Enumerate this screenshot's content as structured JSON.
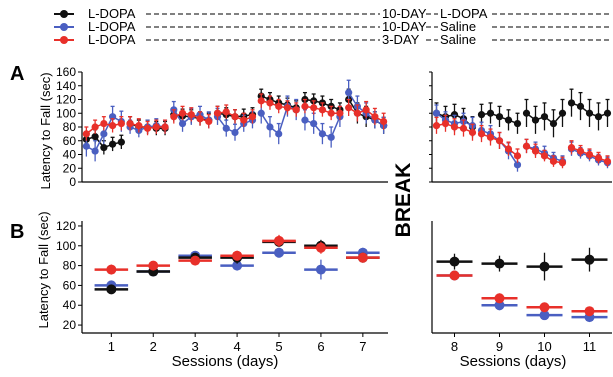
{
  "figure": {
    "panel_a_letter": "A",
    "panel_b_letter": "B",
    "break_label": "BREAK",
    "xlabel_left": "Sessions (days)",
    "xlabel_right": "Sessions (days)",
    "ylabel_a": "Latency to Fall (sec)",
    "ylabel_b": "Latency to Fall (sec)"
  },
  "legend": [
    {
      "color": "#111111",
      "left": "L-DOPA",
      "mid": "10-DAY",
      "right": "L-DOPA"
    },
    {
      "color": "#4a5fc1",
      "left": "L-DOPA",
      "mid": "10-DAY",
      "right": "Saline"
    },
    {
      "color": "#e8302a",
      "left": "L-DOPA",
      "mid": "3-DAY",
      "right": "Saline"
    }
  ],
  "colors": {
    "black": "#111111",
    "blue": "#4a5fc1",
    "red": "#e8302a"
  },
  "chart_data": [
    {
      "type": "line",
      "panel": "A",
      "part": "sessions 1-7",
      "ylabel": "Latency to Fall (sec)",
      "yticks": [
        0,
        20,
        40,
        60,
        80,
        100,
        120,
        140,
        160
      ],
      "ylim": [
        0,
        160
      ],
      "xlim": [
        0.5,
        7.5
      ],
      "points_per_session": 5,
      "series": [
        {
          "color": "#111111",
          "values": [
            62,
            66,
            50,
            55,
            58,
            85,
            80,
            80,
            78,
            78,
            98,
            96,
            95,
            92,
            90,
            100,
            98,
            95,
            96,
            98,
            125,
            120,
            115,
            112,
            108,
            120,
            118,
            115,
            110,
            105,
            120,
            100,
            95,
            90,
            82
          ],
          "errors": [
            10,
            10,
            10,
            10,
            10,
            10,
            10,
            10,
            10,
            10,
            10,
            10,
            10,
            10,
            10,
            10,
            10,
            10,
            10,
            10,
            10,
            10,
            10,
            10,
            10,
            10,
            10,
            10,
            10,
            10,
            15,
            15,
            15,
            12,
            12
          ]
        },
        {
          "color": "#4a5fc1",
          "values": [
            52,
            45,
            70,
            95,
            88,
            80,
            75,
            80,
            82,
            80,
            105,
            85,
            95,
            98,
            90,
            95,
            78,
            72,
            85,
            90,
            100,
            80,
            70,
            110,
            105,
            90,
            85,
            70,
            65,
            95,
            130,
            110,
            100,
            90,
            82
          ],
          "errors": [
            15,
            15,
            15,
            15,
            15,
            10,
            10,
            10,
            10,
            10,
            12,
            12,
            12,
            12,
            12,
            12,
            12,
            12,
            12,
            12,
            15,
            15,
            15,
            15,
            15,
            15,
            15,
            15,
            15,
            15,
            18,
            15,
            15,
            12,
            12
          ]
        },
        {
          "color": "#e8302a",
          "values": [
            70,
            80,
            85,
            82,
            85,
            85,
            82,
            78,
            80,
            80,
            95,
            100,
            98,
            92,
            88,
            100,
            102,
            95,
            90,
            95,
            118,
            115,
            110,
            108,
            105,
            110,
            108,
            105,
            100,
            100,
            108,
            100,
            105,
            95,
            88
          ],
          "errors": [
            10,
            10,
            10,
            10,
            10,
            10,
            10,
            10,
            10,
            10,
            10,
            10,
            10,
            10,
            10,
            10,
            10,
            10,
            10,
            10,
            10,
            10,
            10,
            10,
            10,
            10,
            10,
            10,
            10,
            10,
            12,
            12,
            12,
            12,
            12
          ]
        }
      ]
    },
    {
      "type": "line",
      "panel": "A",
      "part": "sessions 8-11",
      "ylim": [
        0,
        160
      ],
      "xlim": [
        7.5,
        11.5
      ],
      "points_per_session": 5,
      "series": [
        {
          "color": "#111111",
          "values": [
            100,
            95,
            98,
            92,
            80,
            98,
            100,
            95,
            90,
            85,
            100,
            90,
            95,
            85,
            100,
            115,
            110,
            100,
            95,
            100
          ],
          "errors": [
            15,
            15,
            15,
            15,
            15,
            15,
            15,
            15,
            15,
            15,
            20,
            20,
            20,
            20,
            20,
            20,
            20,
            20,
            20,
            20
          ]
        },
        {
          "color": "#4a5fc1",
          "values": [
            100,
            90,
            85,
            88,
            82,
            75,
            70,
            60,
            45,
            25,
            52,
            48,
            42,
            35,
            30,
            48,
            42,
            38,
            32,
            28
          ],
          "errors": [
            12,
            12,
            12,
            12,
            12,
            12,
            12,
            12,
            12,
            10,
            10,
            10,
            10,
            8,
            8,
            10,
            8,
            8,
            8,
            8
          ]
        },
        {
          "color": "#e8302a",
          "values": [
            82,
            85,
            80,
            78,
            72,
            70,
            65,
            60,
            48,
            38,
            52,
            45,
            38,
            30,
            28,
            50,
            45,
            40,
            35,
            30
          ],
          "errors": [
            12,
            12,
            12,
            12,
            12,
            12,
            12,
            12,
            10,
            10,
            10,
            10,
            8,
            8,
            8,
            10,
            8,
            8,
            8,
            8
          ]
        }
      ]
    },
    {
      "type": "scatter",
      "panel": "B",
      "part": "sessions 1-7",
      "ylabel": "Latency to Fall (sec)",
      "xlabel": "Sessions (days)",
      "x": [
        1,
        2,
        3,
        4,
        5,
        6,
        7
      ],
      "xticks": [
        1,
        2,
        3,
        4,
        5,
        6,
        7
      ],
      "yticks": [
        20,
        40,
        60,
        80,
        100,
        120
      ],
      "ylim": [
        12,
        125
      ],
      "xlim": [
        0.3,
        7.6
      ],
      "series": [
        {
          "color": "#111111",
          "values": [
            56,
            74,
            88,
            88,
            104,
            100,
            88
          ],
          "errors": [
            4,
            4,
            4,
            6,
            5,
            6,
            5
          ]
        },
        {
          "color": "#4a5fc1",
          "values": [
            60,
            74,
            90,
            80,
            93,
            76,
            93
          ],
          "errors": [
            5,
            5,
            4,
            5,
            5,
            10,
            5
          ]
        },
        {
          "color": "#e8302a",
          "values": [
            76,
            80,
            85,
            90,
            105,
            98,
            88
          ],
          "errors": [
            5,
            4,
            4,
            5,
            6,
            6,
            5
          ]
        }
      ]
    },
    {
      "type": "scatter",
      "panel": "B",
      "part": "sessions 8-11",
      "xlabel": "Sessions (days)",
      "x": [
        8,
        9,
        10,
        11
      ],
      "xticks": [
        8,
        9,
        10,
        11
      ],
      "ylim": [
        12,
        125
      ],
      "xlim": [
        7.5,
        11.5
      ],
      "series": [
        {
          "color": "#111111",
          "values": [
            84,
            82,
            79,
            86
          ],
          "errors": [
            8,
            8,
            14,
            12
          ]
        },
        {
          "color": "#4a5fc1",
          "values": [
            70,
            40,
            30,
            28
          ],
          "errors": [
            5,
            5,
            4,
            4
          ]
        },
        {
          "color": "#e8302a",
          "values": [
            70,
            47,
            38,
            34
          ],
          "errors": [
            5,
            5,
            4,
            4
          ]
        }
      ]
    }
  ]
}
